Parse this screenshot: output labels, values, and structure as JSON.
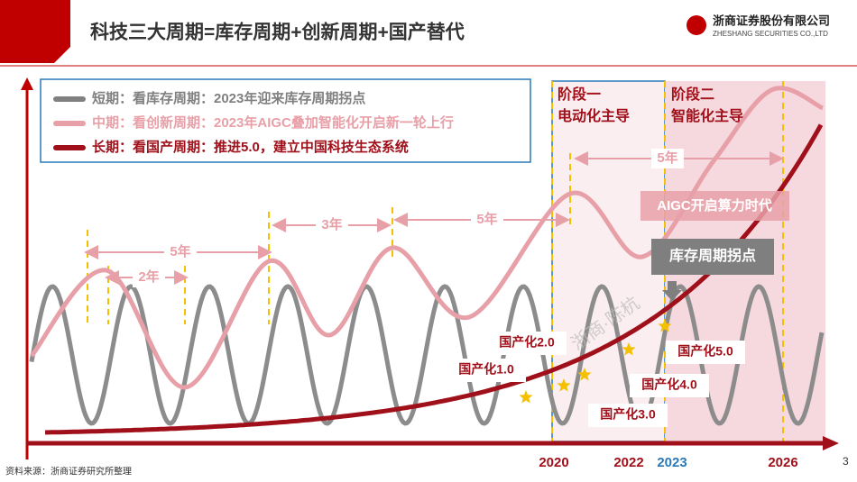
{
  "header": {
    "title": "科技三大周期=库存周期+创新周期+国产替代",
    "company": "浙商证券股份有限公司",
    "company_en": "ZHESHANG SECURITIES CO.,LTD"
  },
  "legend": [
    "短期：看库存周期：2023年迎来库存周期拐点",
    "中期：看创新周期：2023年AIGC叠加智能化开启新一轮上行",
    "长期：看国产周期：推进5.0，建立中国科技生态系统"
  ],
  "stages": [
    {
      "name": "阶段一",
      "label": "电动化主导"
    },
    {
      "name": "阶段二",
      "label": "智能化主导"
    }
  ],
  "intervals": [
    "5年",
    "2年",
    "3年",
    "5年",
    "5年"
  ],
  "annotations": [
    "AIGC开启算力时代",
    "库存周期拐点"
  ],
  "milestones": [
    "国产化1.0",
    "国产化2.0",
    "国产化3.0",
    "国产化4.0",
    "国产化5.0"
  ],
  "years": [
    "2020",
    "2022",
    "2023",
    "2026"
  ],
  "watermark": "浙商·陈杭",
  "source": "资料来源：浙商证券研究所整理",
  "page": "3"
}
